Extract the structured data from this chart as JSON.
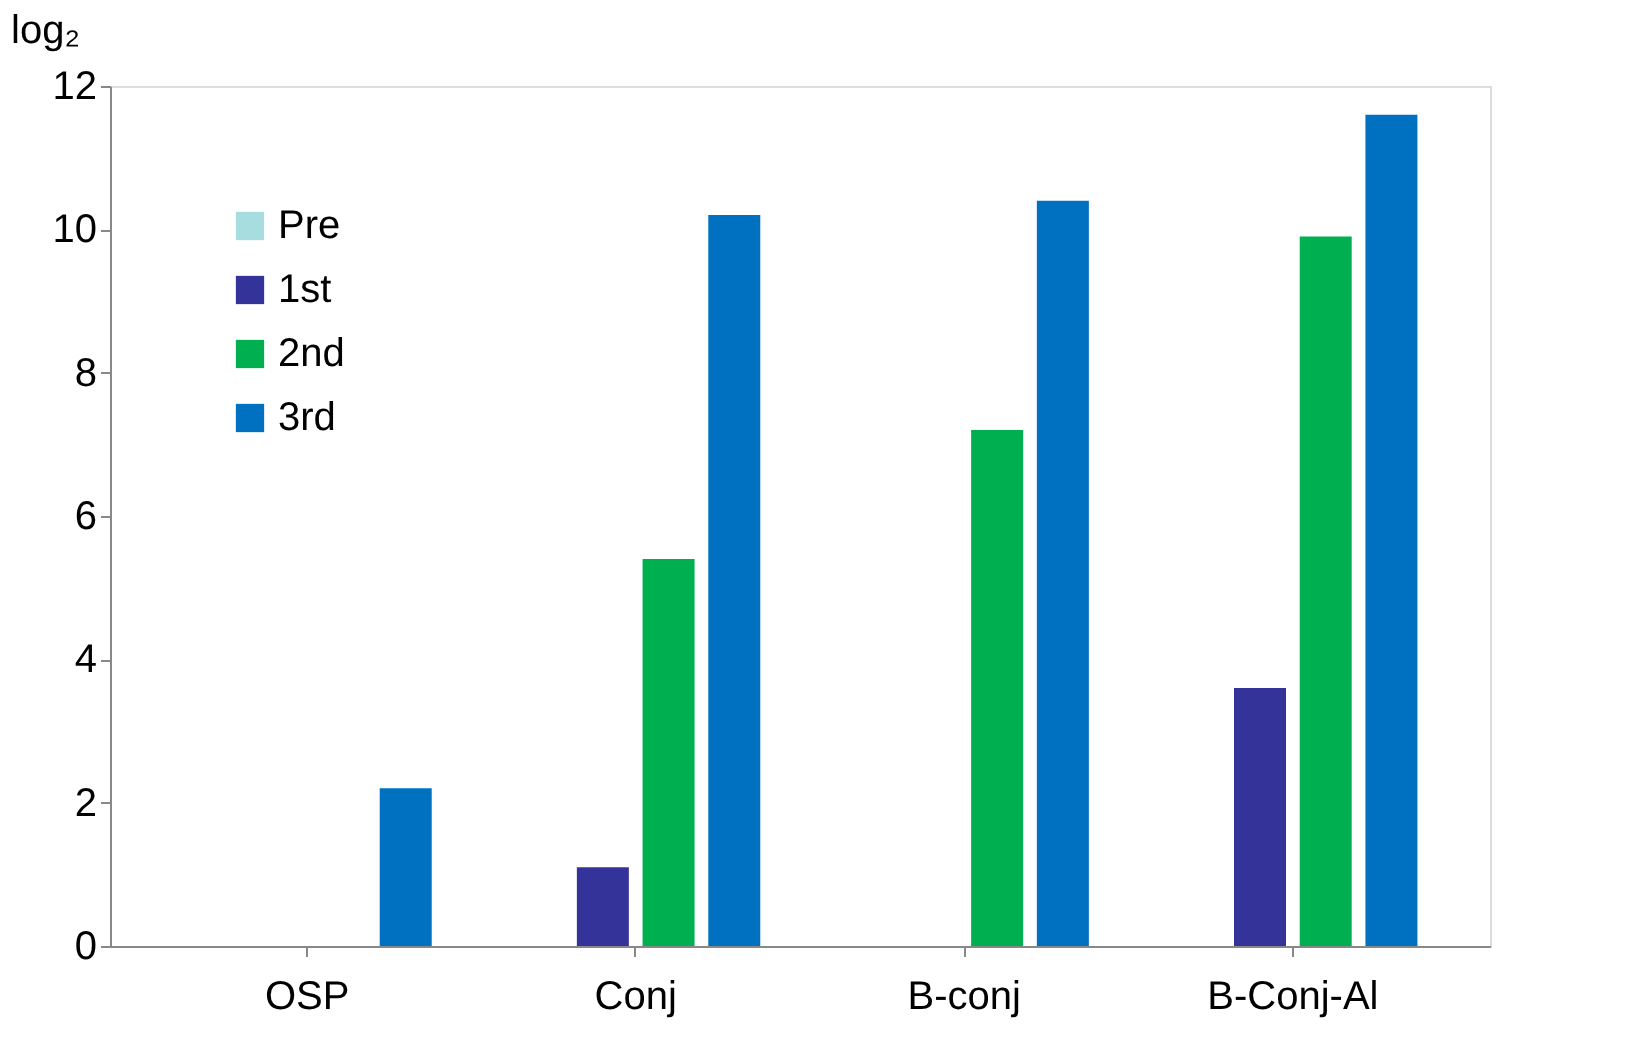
{
  "chart_data": {
    "type": "bar",
    "ylabel": "log₂",
    "categories": [
      "OSP",
      "Conj",
      "B-conj",
      "B-Conj-Al"
    ],
    "series": [
      {
        "name": "Pre",
        "color": "#a8dde0",
        "values": [
          0,
          0,
          0,
          0
        ]
      },
      {
        "name": "1st",
        "color": "#333399",
        "values": [
          0,
          1.1,
          0,
          3.6
        ]
      },
      {
        "name": "2nd",
        "color": "#00b050",
        "values": [
          0,
          5.4,
          7.2,
          9.9
        ]
      },
      {
        "name": "3rd",
        "color": "#0070c0",
        "values": [
          2.2,
          10.2,
          10.4,
          11.6
        ]
      }
    ],
    "ylim": [
      0,
      12
    ],
    "yticks": [
      0,
      2,
      4,
      6,
      8,
      10,
      12
    ],
    "grid": false,
    "legend": "top left"
  }
}
